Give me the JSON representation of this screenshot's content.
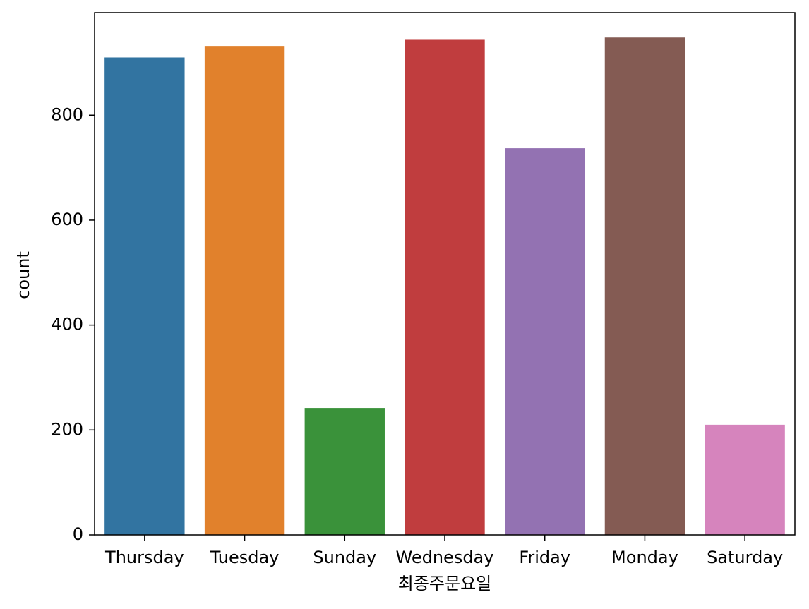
{
  "chart_data": {
    "type": "bar",
    "x_label": "최종주문요일",
    "y_label": "count",
    "categories": [
      "Thursday",
      "Tuesday",
      "Sunday",
      "Wednesday",
      "Friday",
      "Monday",
      "Saturday"
    ],
    "values": [
      910,
      932,
      242,
      945,
      737,
      948,
      210
    ],
    "colors": [
      "#3274a1",
      "#e1812c",
      "#3a923a",
      "#c03d3e",
      "#9372b2",
      "#845b53",
      "#d684bd"
    ],
    "ylim": [
      0,
      995.4
    ],
    "yticks": [
      0,
      200,
      400,
      600,
      800
    ],
    "grid": false
  }
}
